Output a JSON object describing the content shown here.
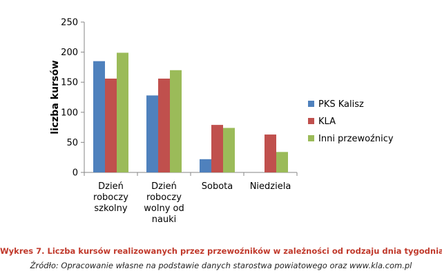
{
  "chart_data": {
    "type": "bar",
    "ylabel": "liczba kursów",
    "xlabel": "",
    "ylim": [
      0,
      250
    ],
    "yticks": [
      0,
      50,
      100,
      150,
      200,
      250
    ],
    "grid": false,
    "legend_position": "right",
    "categories": [
      [
        "Dzień",
        "roboczy",
        "szkolny"
      ],
      [
        "Dzień",
        "roboczy",
        "wolny od",
        "nauki"
      ],
      [
        "Sobota"
      ],
      [
        "Niedziela"
      ]
    ],
    "series": [
      {
        "name": "PKS Kalisz",
        "color": "#4f81bd",
        "values": [
          185,
          128,
          22,
          0
        ]
      },
      {
        "name": "KLA",
        "color": "#c0504d",
        "values": [
          156,
          156,
          79,
          63
        ]
      },
      {
        "name": "Inni przewoźnicy",
        "color": "#9bbb59",
        "values": [
          199,
          170,
          74,
          34
        ]
      }
    ]
  },
  "caption": {
    "title": "Wykres 7. Liczba kursów realizowanych przez przewoźników w zależności od rodzaju dnia tygodnia",
    "source": "Źródło: Opracowanie własne na podstawie danych starostwa powiatowego oraz www.kla.com.pl"
  }
}
